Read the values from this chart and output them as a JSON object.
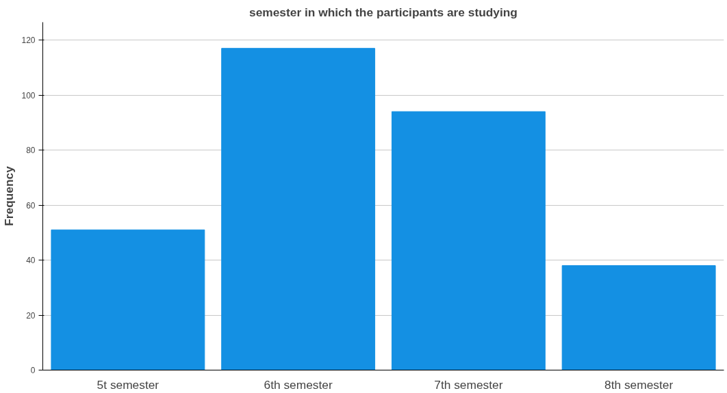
{
  "chart_data": {
    "type": "bar",
    "title": "semester in which the participants are studying",
    "ylabel": "Frequency",
    "categories": [
      "5t semester",
      "6th semester",
      "7th semester",
      "8th semester"
    ],
    "values": [
      51,
      117,
      94,
      38
    ],
    "color": "#1490e3",
    "ylim": [
      0,
      126.5
    ],
    "yticks": [
      0,
      20,
      40,
      60,
      80,
      100,
      120
    ],
    "grid": "y"
  }
}
